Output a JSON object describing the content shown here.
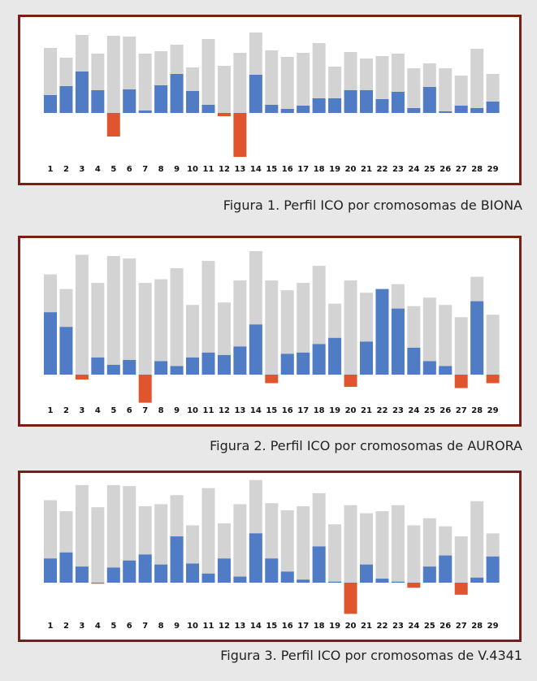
{
  "colors": {
    "background": "#e8e8e8",
    "panel_border": "#7a1e16",
    "total_bar": "#d3d3d3",
    "positive_bar": "#4f7cc4",
    "negative_bar": "#e0552e"
  },
  "chart_data": [
    {
      "type": "bar",
      "title": "",
      "caption": "Figura 1. Perfil ICO por cromosomas de BIONA",
      "categories": [
        "1",
        "2",
        "3",
        "4",
        "5",
        "6",
        "7",
        "8",
        "9",
        "10",
        "11",
        "12",
        "13",
        "14",
        "15",
        "16",
        "17",
        "18",
        "19",
        "20",
        "21",
        "22",
        "23",
        "24",
        "25",
        "26",
        "27",
        "28",
        "29"
      ],
      "series": [
        {
          "role": "total",
          "values": [
            8.0,
            6.8,
            9.6,
            7.3,
            9.5,
            9.4,
            7.3,
            7.6,
            8.4,
            5.6,
            9.1,
            5.8,
            7.4,
            9.9,
            7.7,
            6.9,
            7.4,
            8.6,
            5.7,
            7.5,
            6.7,
            7.0,
            7.3,
            5.5,
            6.1,
            5.5,
            4.6,
            7.9,
            4.8
          ]
        },
        {
          "role": "ico",
          "values": [
            2.2,
            3.3,
            5.1,
            2.8,
            -2.9,
            2.9,
            0.3,
            3.4,
            4.8,
            2.7,
            1.0,
            -0.4,
            -5.4,
            4.7,
            1.0,
            0.5,
            0.9,
            1.8,
            1.8,
            2.8,
            2.8,
            1.7,
            2.6,
            0.6,
            3.2,
            0.2,
            0.9,
            0.6,
            1.4
          ]
        }
      ],
      "ylim": [
        -6,
        10
      ]
    },
    {
      "type": "bar",
      "title": "",
      "caption": "Figura 2. Perfil ICO por cromosomas de AURORA",
      "categories": [
        "1",
        "2",
        "3",
        "4",
        "5",
        "6",
        "7",
        "8",
        "9",
        "10",
        "11",
        "12",
        "13",
        "14",
        "15",
        "16",
        "17",
        "18",
        "19",
        "20",
        "21",
        "22",
        "23",
        "24",
        "25",
        "26",
        "27",
        "28",
        "29"
      ],
      "series": [
        {
          "role": "total",
          "values": [
            8.2,
            7.0,
            9.8,
            7.5,
            9.7,
            9.5,
            7.5,
            7.8,
            8.7,
            5.7,
            9.3,
            5.9,
            7.7,
            10.1,
            7.7,
            6.9,
            7.5,
            8.9,
            5.8,
            7.7,
            6.7,
            7.0,
            7.4,
            5.6,
            6.3,
            5.7,
            4.7,
            8.0,
            4.9
          ]
        },
        {
          "role": "ico",
          "values": [
            5.1,
            3.9,
            -0.4,
            1.4,
            0.8,
            1.2,
            -2.3,
            1.1,
            0.7,
            1.4,
            1.8,
            1.6,
            2.3,
            4.1,
            -0.7,
            1.7,
            1.8,
            2.5,
            3.0,
            -1.0,
            2.7,
            7.0,
            5.4,
            2.2,
            1.1,
            0.7,
            -1.1,
            6.0,
            -0.7
          ]
        }
      ],
      "ylim": [
        -3,
        10.5
      ]
    },
    {
      "type": "bar",
      "title": "",
      "caption": "Figura 3. Perfil ICO por cromosomas de V.4341",
      "categories": [
        "1",
        "2",
        "3",
        "4",
        "5",
        "6",
        "7",
        "8",
        "9",
        "10",
        "11",
        "12",
        "13",
        "14",
        "15",
        "16",
        "17",
        "18",
        "19",
        "20",
        "21",
        "22",
        "23",
        "24",
        "25",
        "26",
        "27",
        "28",
        "29"
      ],
      "series": [
        {
          "role": "total",
          "values": [
            8.2,
            7.1,
            9.7,
            7.5,
            9.7,
            9.6,
            7.6,
            7.8,
            8.7,
            5.7,
            9.4,
            5.9,
            7.8,
            10.2,
            7.9,
            7.2,
            7.6,
            8.9,
            5.8,
            7.7,
            6.9,
            7.1,
            7.7,
            5.7,
            6.4,
            5.6,
            4.6,
            8.1,
            4.9
          ]
        },
        {
          "role": "ico",
          "values": [
            2.4,
            3.0,
            1.6,
            -0.1,
            1.5,
            2.2,
            2.8,
            1.8,
            4.6,
            1.9,
            0.9,
            2.4,
            0.6,
            4.9,
            2.4,
            1.1,
            0.3,
            3.6,
            0.1,
            -3.1,
            1.8,
            0.4,
            0.1,
            -0.5,
            1.6,
            2.7,
            -1.2,
            0.5,
            2.6
          ]
        }
      ],
      "ylim": [
        -3.5,
        10.5
      ]
    }
  ]
}
